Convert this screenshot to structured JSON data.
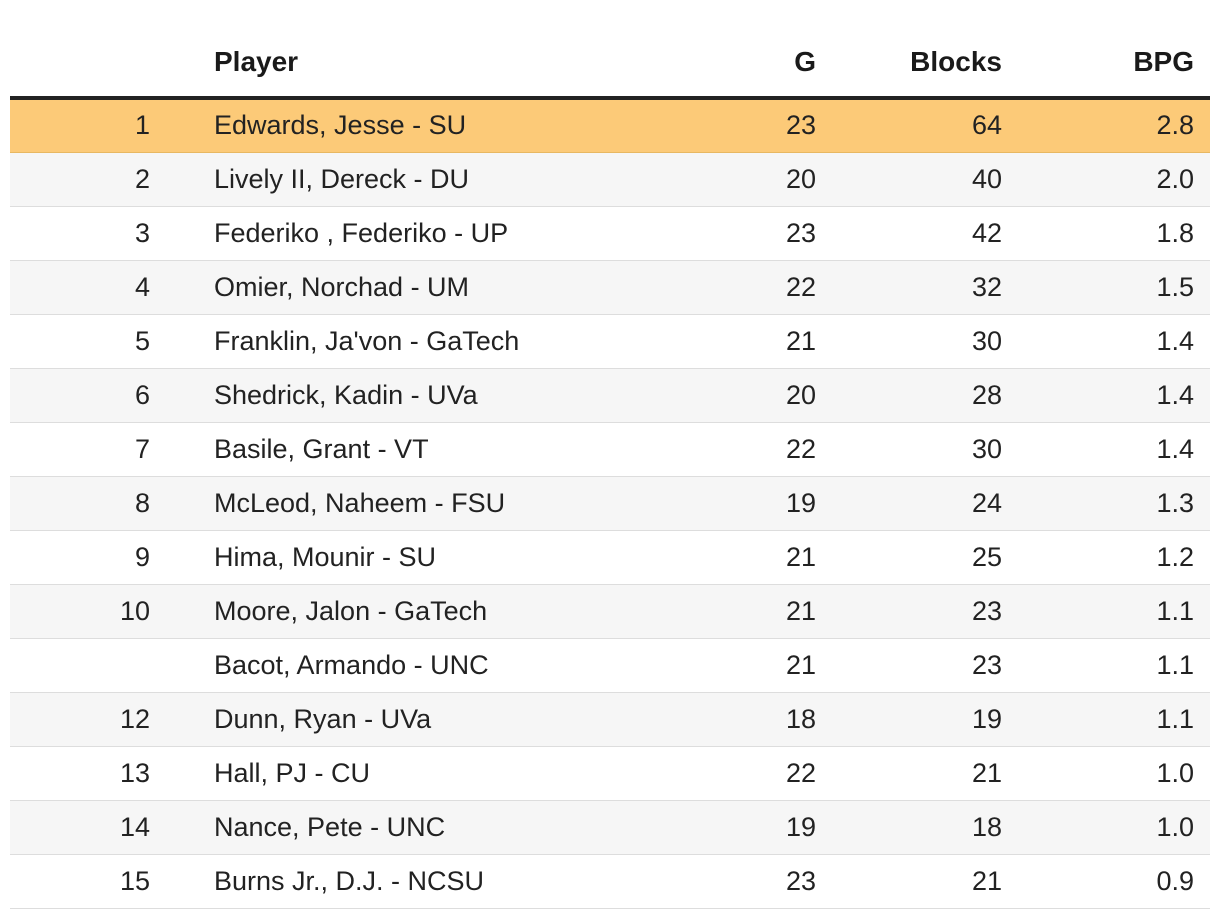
{
  "chart_data": {
    "type": "table",
    "columns": [
      "",
      "Player",
      "G",
      "Blocks",
      "BPG"
    ],
    "highlight_color": "#fcca78",
    "rows": [
      {
        "rank": "1",
        "player": "Edwards, Jesse - SU",
        "g": "23",
        "blocks": "64",
        "bpg": "2.8",
        "highlight": true
      },
      {
        "rank": "2",
        "player": "Lively II, Dereck - DU",
        "g": "20",
        "blocks": "40",
        "bpg": "2.0"
      },
      {
        "rank": "3",
        "player": "Federiko , Federiko - UP",
        "g": "23",
        "blocks": "42",
        "bpg": "1.8"
      },
      {
        "rank": "4",
        "player": "Omier, Norchad - UM",
        "g": "22",
        "blocks": "32",
        "bpg": "1.5"
      },
      {
        "rank": "5",
        "player": "Franklin, Ja'von - GaTech",
        "g": "21",
        "blocks": "30",
        "bpg": "1.4"
      },
      {
        "rank": "6",
        "player": "Shedrick, Kadin - UVa",
        "g": "20",
        "blocks": "28",
        "bpg": "1.4"
      },
      {
        "rank": "7",
        "player": "Basile, Grant - VT",
        "g": "22",
        "blocks": "30",
        "bpg": "1.4"
      },
      {
        "rank": "8",
        "player": "McLeod, Naheem - FSU",
        "g": "19",
        "blocks": "24",
        "bpg": "1.3"
      },
      {
        "rank": "9",
        "player": "Hima, Mounir - SU",
        "g": "21",
        "blocks": "25",
        "bpg": "1.2"
      },
      {
        "rank": "10",
        "player": "Moore, Jalon - GaTech",
        "g": "21",
        "blocks": "23",
        "bpg": "1.1"
      },
      {
        "rank": "",
        "player": "Bacot, Armando - UNC",
        "g": "21",
        "blocks": "23",
        "bpg": "1.1"
      },
      {
        "rank": "12",
        "player": "Dunn, Ryan - UVa",
        "g": "18",
        "blocks": "19",
        "bpg": "1.1"
      },
      {
        "rank": "13",
        "player": "Hall, PJ - CU",
        "g": "22",
        "blocks": "21",
        "bpg": "1.0"
      },
      {
        "rank": "14",
        "player": "Nance, Pete - UNC",
        "g": "19",
        "blocks": "18",
        "bpg": "1.0"
      },
      {
        "rank": "15",
        "player": "Burns Jr., D.J. - NCSU",
        "g": "23",
        "blocks": "21",
        "bpg": "0.9"
      }
    ]
  }
}
